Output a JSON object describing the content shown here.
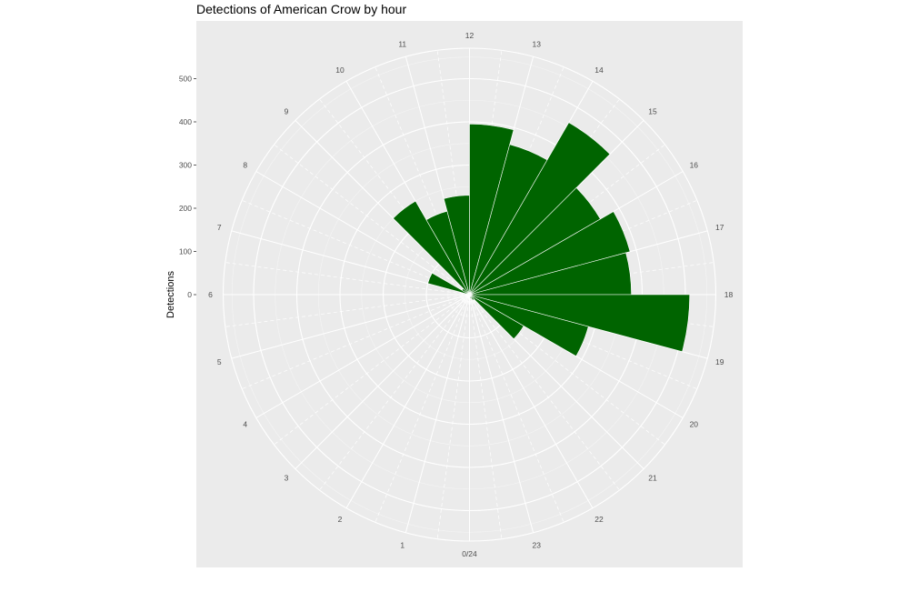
{
  "chart_data": {
    "type": "bar",
    "coordinate_system": "polar",
    "title": "Detections of American Crow by hour",
    "xlabel": "",
    "ylabel": "Detections",
    "categories": [
      0,
      1,
      2,
      3,
      4,
      5,
      6,
      7,
      8,
      9,
      10,
      11,
      12,
      13,
      14,
      15,
      16,
      17,
      18,
      19,
      20,
      21,
      22,
      23
    ],
    "angle_labels": [
      "0/24",
      "1",
      "2",
      "3",
      "4",
      "5",
      "6",
      "7",
      "8",
      "9",
      "10",
      "11",
      "12",
      "13",
      "14",
      "15",
      "16",
      "17",
      "18",
      "19",
      "20",
      "21",
      "22",
      "23"
    ],
    "values": [
      0,
      0,
      0,
      0,
      0,
      0,
      0,
      100,
      20,
      250,
      200,
      230,
      395,
      360,
      460,
      350,
      385,
      375,
      510,
      285,
      145,
      15,
      10,
      0
    ],
    "radial_ticks": [
      0,
      100,
      200,
      300,
      400,
      500
    ],
    "ylim": [
      0,
      570
    ],
    "bar_color": "#006400",
    "panel_background": "#ebebeb",
    "grid": true,
    "legend": "none"
  }
}
